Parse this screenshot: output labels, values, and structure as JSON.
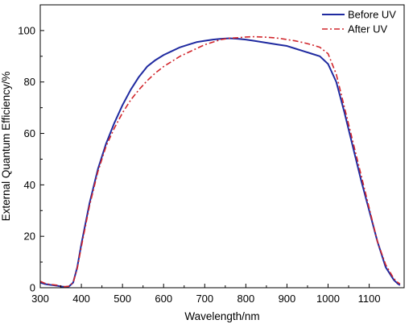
{
  "chart_data": {
    "type": "line",
    "title": "",
    "xlabel": "Wavelength/nm",
    "ylabel": "External Quantum Efficiency/%",
    "xlim": [
      300,
      1185
    ],
    "ylim": [
      0,
      110
    ],
    "xticks": [
      300,
      400,
      500,
      600,
      700,
      800,
      900,
      1000,
      1100
    ],
    "yticks": [
      0,
      20,
      40,
      60,
      80,
      100
    ],
    "xtick_labels": [
      "300",
      "400",
      "500",
      "600",
      "700",
      "800",
      "900",
      "1000",
      "1100"
    ],
    "ytick_labels": [
      "0",
      "20",
      "40",
      "60",
      "80",
      "100"
    ],
    "grid": false,
    "legend_position": "top-right",
    "series": [
      {
        "name": "Before UV",
        "color": "#1f2aa0",
        "style": "solid",
        "x": [
          300,
          310,
          320,
          330,
          340,
          350,
          360,
          370,
          380,
          390,
          400,
          420,
          440,
          460,
          480,
          500,
          520,
          540,
          560,
          580,
          600,
          620,
          640,
          660,
          680,
          700,
          720,
          740,
          760,
          780,
          800,
          820,
          840,
          860,
          880,
          900,
          920,
          940,
          960,
          980,
          1000,
          1020,
          1040,
          1060,
          1080,
          1100,
          1120,
          1140,
          1160,
          1170,
          1175
        ],
        "y": [
          2,
          1.5,
          1.2,
          1.0,
          0.8,
          0.5,
          0.3,
          0.5,
          2.0,
          8,
          17,
          33,
          46,
          56,
          64,
          71,
          77,
          82,
          86,
          88.5,
          90.5,
          92,
          93.5,
          94.5,
          95.5,
          96,
          96.5,
          96.8,
          97,
          96.8,
          96.5,
          96,
          95.5,
          95,
          94.5,
          94,
          93,
          92,
          91,
          90,
          87,
          80,
          68,
          55,
          42,
          30,
          18,
          8,
          3,
          1.5,
          1
        ]
      },
      {
        "name": "After UV",
        "color": "#d1262c",
        "style": "dashdot",
        "x": [
          300,
          310,
          320,
          330,
          340,
          350,
          360,
          370,
          380,
          390,
          400,
          420,
          440,
          460,
          480,
          500,
          520,
          540,
          560,
          580,
          600,
          620,
          640,
          660,
          680,
          700,
          720,
          740,
          760,
          780,
          800,
          820,
          840,
          860,
          880,
          900,
          920,
          940,
          960,
          980,
          1000,
          1020,
          1040,
          1060,
          1080,
          1100,
          1120,
          1140,
          1160,
          1170,
          1175
        ],
        "y": [
          2.5,
          1.8,
          1.4,
          1.2,
          1.0,
          0.7,
          0.4,
          0.6,
          2.0,
          7.5,
          16,
          32,
          45,
          55,
          62,
          68,
          73,
          77,
          80.5,
          83.5,
          86,
          88,
          90,
          91.5,
          93,
          94.5,
          95.5,
          96.5,
          97,
          97.2,
          97.5,
          97.6,
          97.5,
          97.3,
          97,
          96.5,
          96,
          95.3,
          94.5,
          93.5,
          91,
          83,
          70,
          57,
          44,
          31,
          18,
          9,
          3.5,
          2,
          1.5
        ]
      }
    ]
  }
}
